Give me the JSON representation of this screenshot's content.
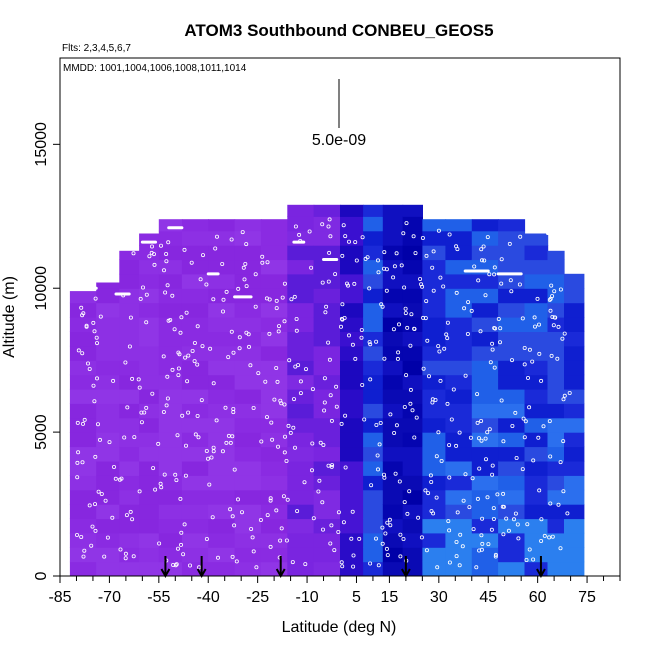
{
  "chart_data": {
    "type": "heatmap",
    "title": "ATOM3 Southbound CONBEU_GEOS5",
    "subtitle": "Flts: 2,3,4,5,6,7",
    "annotation": "MMDD: 1001,1004,1006,1008,1011,1014",
    "xlabel": "Latitude (deg N)",
    "ylabel": "Altitude (m)",
    "xlim": [
      -85,
      85
    ],
    "ylim": [
      0,
      18000
    ],
    "x_ticks": [
      -85,
      -70,
      -55,
      -40,
      -25,
      -10,
      5,
      15,
      30,
      45,
      60,
      75
    ],
    "y_ticks": [
      0,
      5000,
      10000,
      15000
    ],
    "scale_bar_label": "5.0e-09",
    "arrow_latitudes": [
      -53,
      -42,
      -18,
      20,
      61
    ],
    "color_scale": {
      "low": "#2979f0",
      "mid": "#0a0ad2",
      "high": "#8a2be2"
    },
    "columns": [
      {
        "lat": -78,
        "top": 9900,
        "tone": "purple"
      },
      {
        "lat": -70,
        "top": 10200,
        "tone": "purple"
      },
      {
        "lat": -64,
        "top": 11300,
        "tone": "purple"
      },
      {
        "lat": -58,
        "top": 11900,
        "tone": "purple"
      },
      {
        "lat": -52,
        "top": 12400,
        "tone": "purple"
      },
      {
        "lat": -44,
        "top": 12400,
        "tone": "purple"
      },
      {
        "lat": -36,
        "top": 12400,
        "tone": "purple"
      },
      {
        "lat": -28,
        "top": 12400,
        "tone": "purple"
      },
      {
        "lat": -20,
        "top": 12400,
        "tone": "purple"
      },
      {
        "lat": -12,
        "top": 12900,
        "tone": "violet"
      },
      {
        "lat": -4,
        "top": 12900,
        "tone": "violet"
      },
      {
        "lat": 4,
        "top": 12900,
        "tone": "indigo"
      },
      {
        "lat": 10,
        "top": 12900,
        "tone": "blue"
      },
      {
        "lat": 16,
        "top": 12900,
        "tone": "dark"
      },
      {
        "lat": 22,
        "top": 12900,
        "tone": "dark"
      },
      {
        "lat": 28,
        "top": 12400,
        "tone": "blue"
      },
      {
        "lat": 36,
        "top": 12400,
        "tone": "blue"
      },
      {
        "lat": 44,
        "top": 12400,
        "tone": "blue"
      },
      {
        "lat": 52,
        "top": 12400,
        "tone": "blue"
      },
      {
        "lat": 60,
        "top": 11900,
        "tone": "blue"
      },
      {
        "lat": 66,
        "top": 11300,
        "tone": "blue"
      },
      {
        "lat": 70,
        "top": 10500,
        "tone": "blue"
      }
    ]
  }
}
